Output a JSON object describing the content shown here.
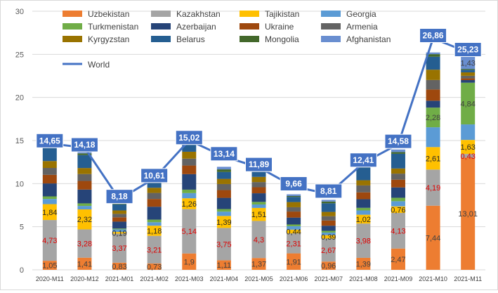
{
  "chart_data": {
    "type": "bar",
    "stacked": true,
    "categories": [
      "2020-M11",
      "2020-M12",
      "2021-M01",
      "2021-M02",
      "2021-M03",
      "2021-M04",
      "2021-M05",
      "2021-M06",
      "2021-M07",
      "2021-M08",
      "2021-M09",
      "2021-M10",
      "2021-M11"
    ],
    "ylim": [
      0,
      30
    ],
    "yticks": [
      0,
      5,
      10,
      15,
      20,
      25,
      30
    ],
    "grid": true,
    "legend_position": "top",
    "series": [
      {
        "name": "Uzbekistan",
        "color": "#ED7D31",
        "values": [
          1.05,
          1.41,
          0.83,
          0.73,
          1.9,
          1.11,
          1.37,
          1.91,
          0.96,
          1.39,
          2.47,
          7.44,
          13.01
        ],
        "labels_shown": true,
        "label_color": "#404040"
      },
      {
        "name": "Kazakhstan",
        "color": "#A5A5A5",
        "values": [
          4.73,
          3.28,
          3.37,
          3.21,
          5.14,
          3.75,
          4.3,
          2.31,
          2.67,
          3.98,
          4.13,
          4.19,
          0.43
        ],
        "labels_shown": true,
        "label_color": "#E00000"
      },
      {
        "name": "Tajikistan",
        "color": "#FFC000",
        "values": [
          1.84,
          2.32,
          0.19,
          1.18,
          1.26,
          1.39,
          1.51,
          0.44,
          0.39,
          1.02,
          0.76,
          2.61,
          1.63
        ],
        "labels_shown": true,
        "label_color": "#262626"
      },
      {
        "name": "Georgia",
        "color": "#5B9BD5",
        "values": [
          0.6,
          0.4,
          0.3,
          0.4,
          0.6,
          0.5,
          0.4,
          0.4,
          0.3,
          0.5,
          0.6,
          2.3,
          1.8
        ]
      },
      {
        "name": "Turkmenistan",
        "color": "#70AD47",
        "values": [
          0.3,
          0.3,
          0.1,
          0.3,
          0.4,
          0.3,
          0.3,
          0.2,
          0.2,
          0.3,
          0.4,
          2.28,
          4.84
        ],
        "labels_shown": true,
        "label_color": "#404040",
        "label_values": [
          null,
          null,
          null,
          null,
          null,
          null,
          null,
          null,
          null,
          null,
          null,
          2.28,
          4.84
        ]
      },
      {
        "name": "Azerbaijan",
        "color": "#264478",
        "values": [
          1.5,
          1.6,
          0.8,
          1.5,
          1.8,
          1.3,
          1.0,
          0.8,
          0.6,
          1.0,
          1.2,
          0.8,
          0.3
        ]
      },
      {
        "name": "Ukraine",
        "color": "#9E480E",
        "values": [
          1.0,
          1.0,
          0.5,
          0.9,
          1.0,
          0.9,
          0.7,
          0.7,
          0.6,
          0.8,
          0.9,
          1.3,
          0.2
        ]
      },
      {
        "name": "Armenia",
        "color": "#636363",
        "values": [
          0.8,
          0.8,
          0.4,
          0.7,
          0.8,
          0.7,
          0.6,
          0.5,
          0.5,
          0.8,
          0.7,
          1.1,
          0.3
        ]
      },
      {
        "name": "Kyrgyzstan",
        "color": "#997300",
        "values": [
          0.8,
          0.7,
          0.4,
          0.6,
          0.8,
          0.6,
          0.6,
          0.6,
          0.5,
          0.6,
          0.6,
          1.2,
          0.4
        ]
      },
      {
        "name": "Belarus",
        "color": "#255E91",
        "values": [
          1.6,
          1.5,
          0.7,
          0.6,
          1.4,
          0.8,
          0.8,
          0.6,
          1.0,
          1.5,
          1.7,
          1.5,
          0.3
        ]
      },
      {
        "name": "Mongolia",
        "color": "#43682B",
        "values": [
          0.2,
          0.2,
          0.2,
          0.2,
          0.3,
          0.3,
          0.2,
          0.1,
          0.2,
          0.2,
          0.2,
          0.3,
          0.1
        ]
      },
      {
        "name": "Afghanistan",
        "color": "#698ED0",
        "values": [
          0.2,
          0.3,
          0.3,
          0.2,
          0.3,
          0.3,
          0.2,
          0.2,
          0.2,
          0.3,
          0.3,
          0.2,
          1.43
        ],
        "labels_shown": true,
        "label_color": "#404040",
        "label_values": [
          null,
          null,
          null,
          null,
          null,
          null,
          null,
          null,
          null,
          null,
          null,
          null,
          1.43
        ]
      }
    ],
    "line_series": {
      "name": "World",
      "color": "#4472C4",
      "values": [
        14.65,
        14.18,
        8.18,
        10.61,
        15.02,
        13.14,
        11.89,
        9.66,
        8.81,
        12.41,
        14.58,
        26.86,
        25.23
      ]
    }
  }
}
